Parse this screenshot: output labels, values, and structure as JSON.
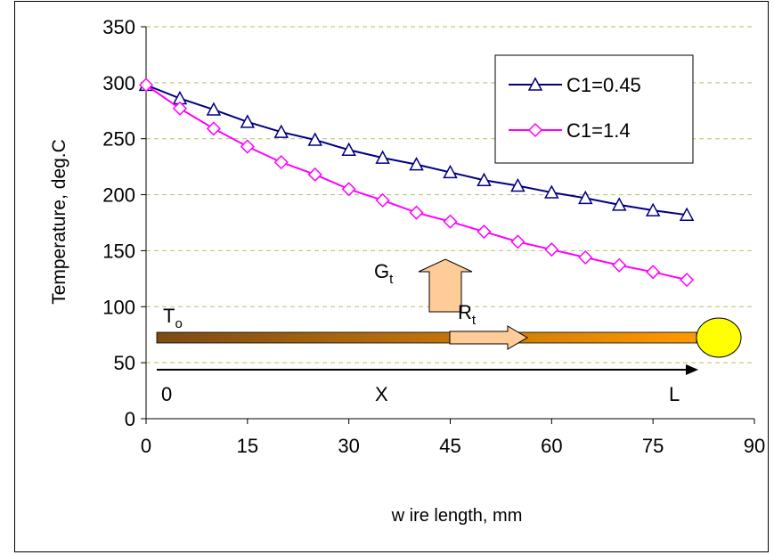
{
  "chart_data": {
    "type": "line",
    "title": "",
    "xlabel": "w ire length, mm",
    "ylabel": "Temperature, deg.C",
    "xlim": [
      0,
      90
    ],
    "ylim": [
      0,
      350
    ],
    "x_ticks": [
      0,
      15,
      30,
      45,
      60,
      75,
      90
    ],
    "y_ticks": [
      0,
      50,
      100,
      150,
      200,
      250,
      300,
      350
    ],
    "grid": "horizontal dashed",
    "legend_position": "top-right",
    "x": [
      0,
      5,
      10,
      15,
      20,
      25,
      30,
      35,
      40,
      45,
      50,
      55,
      60,
      65,
      70,
      75,
      80
    ],
    "series": [
      {
        "name": "C1=0.45",
        "color": "#000080",
        "marker": "triangle",
        "values": [
          298,
          286,
          276,
          265,
          256,
          249,
          240,
          233,
          227,
          220,
          213,
          208,
          202,
          197,
          191,
          186,
          182
        ]
      },
      {
        "name": "C1=1.4",
        "color": "#FF00FF",
        "marker": "diamond",
        "values": [
          298,
          277,
          259,
          243,
          229,
          218,
          205,
          195,
          184,
          176,
          167,
          158,
          151,
          144,
          137,
          131,
          124
        ]
      }
    ],
    "annotations": {
      "t0_label": "T",
      "t0_sub": "o",
      "gt_label": "G",
      "gt_sub": "t",
      "rt_label": "R",
      "rt_sub": "t",
      "axis_start": "0",
      "axis_mid": "X",
      "axis_end": "L",
      "wire_colors": [
        "#7B4A16",
        "#FF9900"
      ],
      "bulb_color": "#FFFF00",
      "arrow_color": "#FFCC99"
    }
  }
}
